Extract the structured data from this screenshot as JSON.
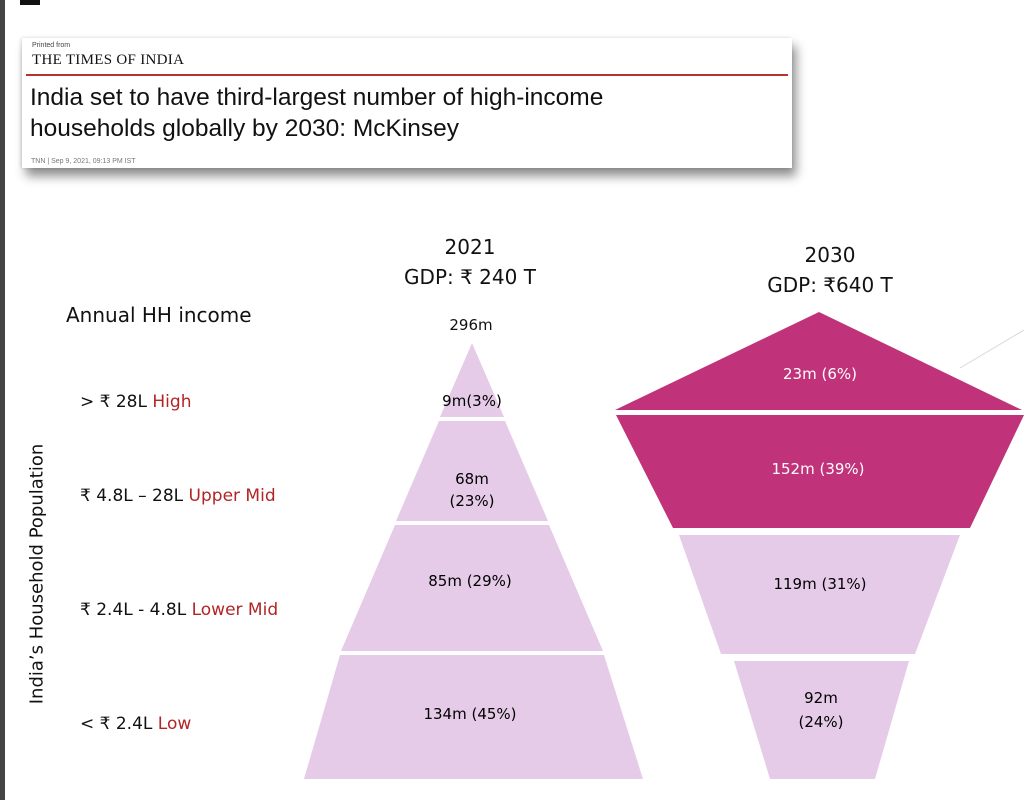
{
  "news": {
    "printed_from": "Printed from",
    "masthead": "THE TIMES OF INDIA",
    "headline_line1": "India set to have third-largest number of high-income",
    "headline_line2": "households globally by 2030: McKinsey",
    "byline": "TNN | Sep 9, 2021, 09:13 PM IST"
  },
  "y2021": {
    "year": "2021",
    "gdp": "GDP: ₹ 240 T",
    "total": "296m"
  },
  "y2030": {
    "year": "2030",
    "gdp": "GDP: ₹640 T"
  },
  "annual_hh_income_label": "Annual HH income",
  "axis_label": "India’s Household Population",
  "bands": [
    {
      "range": "> ₹ 28L",
      "tag": "High"
    },
    {
      "range": "₹ 4.8L – 28L",
      "tag": "Upper Mid"
    },
    {
      "range": "₹ 2.4L - 4.8L",
      "tag": "Lower Mid"
    },
    {
      "range": "< ₹ 2.4L",
      "tag": "Low"
    }
  ],
  "segments_2021": [
    {
      "line1": "9m(3%)",
      "line2": "",
      "color": "#e6cbe8"
    },
    {
      "line1": "68m",
      "line2": "(23%)",
      "color": "#e6cbe8"
    },
    {
      "line1": "85m (29%)",
      "line2": "",
      "color": "#e6cbe8"
    },
    {
      "line1": "134m (45%)",
      "line2": "",
      "color": "#e6cbe8"
    }
  ],
  "segments_2030": [
    {
      "line1": "23m (6%)",
      "line2": "",
      "color": "#c0337a"
    },
    {
      "line1": "152m (39%)",
      "line2": "",
      "color": "#c0337a"
    },
    {
      "line1": "119m (31%)",
      "line2": "",
      "color": "#e6cbe8"
    },
    {
      "line1": "92m",
      "line2": "(24%)",
      "color": "#e6cbe8"
    }
  ],
  "colors": {
    "high_band": "#c0337a",
    "low_band": "#e6cbe8",
    "tag_text": "#b22525"
  }
}
